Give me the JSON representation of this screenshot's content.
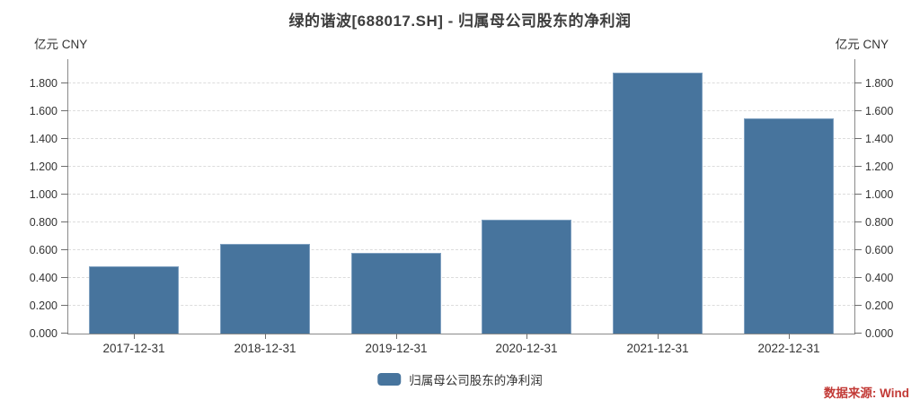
{
  "title": "绿的谐波[688017.SH] - 归属母公司股东的净利润",
  "axis_unit_left": "亿元 CNY",
  "axis_unit_right": "亿元 CNY",
  "source": "数据来源: Wind",
  "legend": {
    "label": "归属母公司股东的净利润"
  },
  "colors": {
    "bar": "#47749D",
    "bar_border": "#7FA0C0",
    "source_text": "#C23A36",
    "axis": "#8A8A8A",
    "grid": "#DCDCDC",
    "text": "#333333"
  },
  "chart_data": {
    "type": "bar",
    "title": "绿的谐波[688017.SH] - 归属母公司股东的净利润",
    "categories": [
      "2017-12-31",
      "2018-12-31",
      "2019-12-31",
      "2020-12-31",
      "2021-12-31",
      "2022-12-31"
    ],
    "series": [
      {
        "name": "归属母公司股东的净利润",
        "values": [
          0.485,
          0.648,
          0.583,
          0.82,
          1.879,
          1.551
        ]
      }
    ],
    "ylabel": "亿元 CNY",
    "ylabel_right": "亿元 CNY",
    "ylim": [
      0,
      1.975
    ],
    "ytick_labels": [
      "0.000",
      "0.200",
      "0.400",
      "0.600",
      "0.800",
      "1.000",
      "1.200",
      "1.400",
      "1.600",
      "1.800"
    ],
    "grid": "horizontal-dashed",
    "legend_position": "bottom-center",
    "dual_axis": true,
    "bar_color": "#47749D",
    "source": "数据来源: Wind"
  }
}
